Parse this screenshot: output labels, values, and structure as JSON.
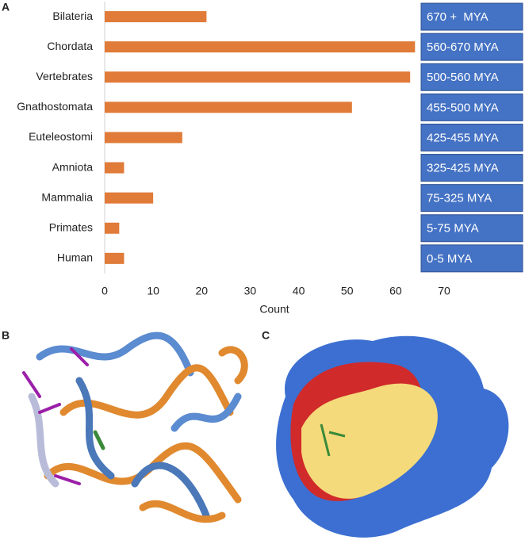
{
  "panel_labels": [
    "A",
    "B",
    "C"
  ],
  "chart_data": {
    "type": "bar",
    "orientation": "horizontal",
    "categories": [
      "Bilateria",
      "Chordata",
      "Vertebrates",
      "Gnathostomata",
      "Euteleostomi",
      "Amniota",
      "Mammalia",
      "Primates",
      "Human"
    ],
    "values": [
      21,
      64,
      63,
      51,
      16,
      4,
      10,
      3,
      4
    ],
    "color": "#e07b39",
    "xlim": [
      0,
      70
    ],
    "xticks": [
      0,
      10,
      20,
      30,
      40,
      50,
      60,
      70
    ],
    "xlabel": "Count",
    "age_labels": [
      "670 +  MYA",
      "560-670 MYA",
      "500-560 MYA",
      "455-500 MYA",
      "425-455 MYA",
      "325-425 MYA",
      "75-325 MYA",
      "5-75 MYA",
      "0-5 MYA"
    ],
    "age_label_color": "#4472c4"
  }
}
